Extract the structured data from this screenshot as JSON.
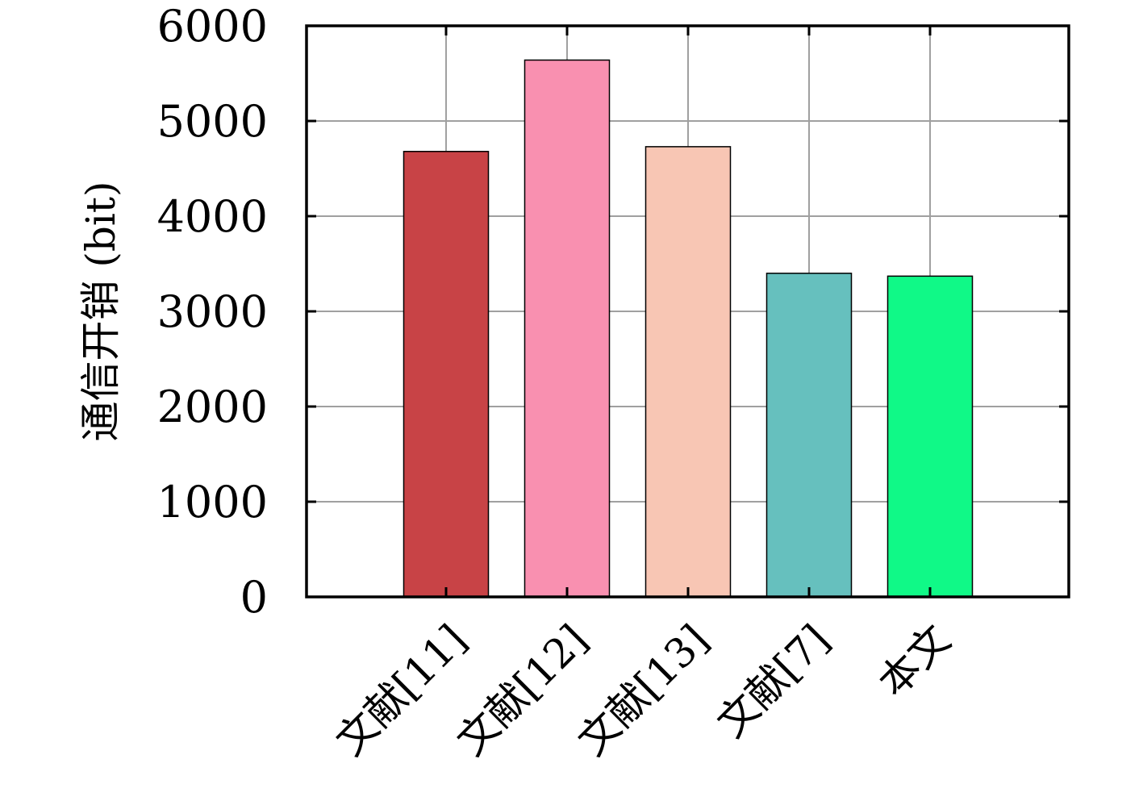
{
  "chart_data": {
    "type": "bar",
    "categories": [
      "文献[11]",
      "文献[12]",
      "文献[13]",
      "文献[7]",
      "本文"
    ],
    "values": [
      4680,
      5640,
      4730,
      3400,
      3370
    ],
    "colors": [
      "#c84346",
      "#f990b0",
      "#f8c6b4",
      "#66c0be",
      "#10f987"
    ],
    "ylabel": "通信开销 (bit)",
    "xlabel": "",
    "ylim": [
      0,
      6000
    ],
    "yticks": [
      0,
      1000,
      2000,
      3000,
      4000,
      5000,
      6000
    ],
    "grid": true,
    "legend": "none"
  }
}
